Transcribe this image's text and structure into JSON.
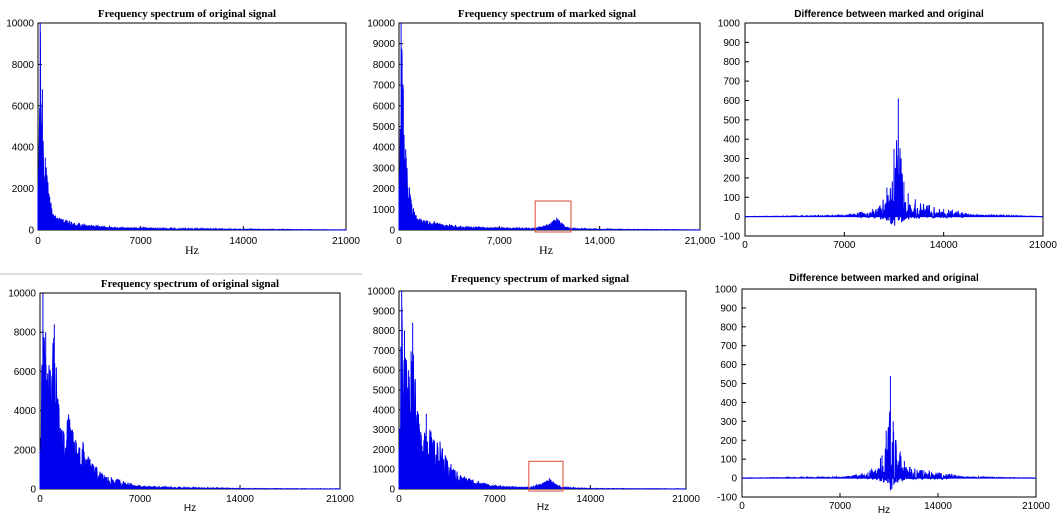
{
  "colors": {
    "line": "#0000ee",
    "axis": "#000000",
    "highlight": "#d94a3a",
    "highlight_bottom": "#b07040"
  },
  "chart_data": [
    {
      "id": "c1",
      "type": "line",
      "title": "Frequency spectrum of original signal",
      "xlabel": "Hz",
      "ylabel": "",
      "xlim": [
        0,
        21000
      ],
      "ylim": [
        0,
        10000
      ],
      "xticks": [
        0,
        7000,
        14000,
        21000
      ],
      "xtick_labels": [
        "0",
        "7000",
        "14000",
        "21000"
      ],
      "yticks": [
        0,
        2000,
        4000,
        6000,
        8000,
        10000
      ],
      "grid": false,
      "style": "serif",
      "series": [
        {
          "x": [
            0,
            150,
            300,
            500,
            800,
            1200,
            2000,
            3000,
            5000,
            7000,
            10000,
            14000,
            18000,
            21000
          ],
          "y": [
            2000,
            10000,
            6800,
            3500,
            1600,
            700,
            450,
            280,
            150,
            100,
            60,
            30,
            15,
            5
          ]
        }
      ]
    },
    {
      "id": "c2",
      "type": "line",
      "title": "Frequency spectrum of marked signal",
      "xlabel": "Hz",
      "ylabel": "",
      "xlim": [
        0,
        21000
      ],
      "ylim": [
        0,
        10000
      ],
      "xticks": [
        0,
        7000,
        14000,
        21000
      ],
      "xtick_labels": [
        "0",
        "7,000",
        "14,000",
        "21,000"
      ],
      "yticks": [
        0,
        1000,
        2000,
        3000,
        4000,
        5000,
        6000,
        7000,
        8000,
        9000,
        10000
      ],
      "grid": false,
      "style": "serif",
      "highlight_x": [
        9500,
        12000
      ],
      "highlight_y": [
        0,
        1400
      ],
      "series": [
        {
          "x": [
            0,
            150,
            300,
            500,
            800,
            1200,
            2000,
            3000,
            5000,
            7000,
            9500,
            10500,
            11000,
            11500,
            12000,
            14000,
            18000,
            21000
          ],
          "y": [
            2000,
            10000,
            6800,
            3500,
            1600,
            700,
            450,
            280,
            150,
            100,
            80,
            300,
            600,
            250,
            70,
            30,
            15,
            5
          ]
        }
      ]
    },
    {
      "id": "c3",
      "type": "line",
      "title": "Difference between marked and original",
      "xlabel": "",
      "ylabel": "",
      "xlim": [
        0,
        21000
      ],
      "ylim": [
        -100,
        1000
      ],
      "xticks": [
        0,
        7000,
        14000,
        21000
      ],
      "xtick_labels": [
        "0",
        "7000",
        "14000",
        "21000"
      ],
      "yticks": [
        -100,
        0,
        100,
        200,
        300,
        400,
        500,
        600,
        700,
        800,
        900,
        1000
      ],
      "grid": false,
      "style": "sans",
      "series": [
        {
          "x": [
            0,
            7000,
            9000,
            10000,
            10500,
            10800,
            11000,
            11200,
            11500,
            12000,
            13000,
            14000,
            15000,
            16000,
            21000
          ],
          "y": [
            0,
            5,
            40,
            150,
            350,
            610,
            300,
            180,
            120,
            90,
            60,
            40,
            30,
            10,
            0
          ]
        }
      ]
    },
    {
      "id": "c4",
      "type": "line",
      "title": "Frequency spectrum of original signal",
      "xlabel": "Hz",
      "ylabel": "",
      "xlim": [
        0,
        21000
      ],
      "ylim": [
        0,
        10000
      ],
      "xticks": [
        0,
        7000,
        14000,
        21000
      ],
      "xtick_labels": [
        "0",
        "7000",
        "14000",
        "21000"
      ],
      "yticks": [
        0,
        2000,
        4000,
        6000,
        8000,
        10000
      ],
      "grid": false,
      "style": "sans",
      "series": [
        {
          "x": [
            0,
            200,
            400,
            700,
            1000,
            1500,
            2000,
            2500,
            3000,
            3500,
            4500,
            7000,
            10000,
            14000,
            21000
          ],
          "y": [
            2000,
            10000,
            8000,
            6000,
            8400,
            3000,
            3800,
            2500,
            2400,
            1500,
            700,
            150,
            60,
            20,
            5
          ]
        }
      ]
    },
    {
      "id": "c5",
      "type": "line",
      "title": "Frequency spectrum of marked signal",
      "xlabel": "Hz",
      "ylabel": "",
      "xlim": [
        0,
        21000
      ],
      "ylim": [
        0,
        10000
      ],
      "xticks": [
        0,
        7000,
        14000,
        21000
      ],
      "xtick_labels": [
        "0",
        "7000",
        "14000",
        "21000"
      ],
      "yticks": [
        0,
        1000,
        2000,
        3000,
        4000,
        5000,
        6000,
        7000,
        8000,
        9000,
        10000
      ],
      "grid": false,
      "style": "sans",
      "highlight_x": [
        9500,
        12000
      ],
      "highlight_y": [
        0,
        1400
      ],
      "series": [
        {
          "x": [
            0,
            200,
            400,
            700,
            1000,
            1500,
            2000,
            2500,
            3000,
            3500,
            4500,
            7000,
            9500,
            10500,
            11000,
            11500,
            12000,
            14000,
            21000
          ],
          "y": [
            2000,
            10000,
            8000,
            6000,
            8400,
            3000,
            3800,
            2500,
            2400,
            1500,
            700,
            150,
            80,
            300,
            550,
            250,
            70,
            20,
            5
          ]
        }
      ]
    },
    {
      "id": "c6",
      "type": "line",
      "title": "Difference between marked and original",
      "xlabel": "Hz",
      "ylabel": "",
      "xlim": [
        0,
        21000
      ],
      "ylim": [
        -100,
        1000
      ],
      "xticks": [
        0,
        7000,
        14000,
        21000
      ],
      "xtick_labels": [
        "0",
        "7000",
        "14000",
        "21000"
      ],
      "yticks": [
        -100,
        0,
        100,
        200,
        300,
        400,
        500,
        600,
        700,
        800,
        900,
        1000
      ],
      "grid": false,
      "style": "sans",
      "series": [
        {
          "x": [
            0,
            7000,
            9000,
            10000,
            10300,
            10600,
            10800,
            11000,
            11300,
            11600,
            12000,
            13000,
            14000,
            15000,
            16000,
            21000
          ],
          "y": [
            0,
            5,
            30,
            120,
            250,
            540,
            300,
            200,
            140,
            90,
            60,
            40,
            30,
            20,
            5,
            0
          ]
        }
      ]
    }
  ]
}
